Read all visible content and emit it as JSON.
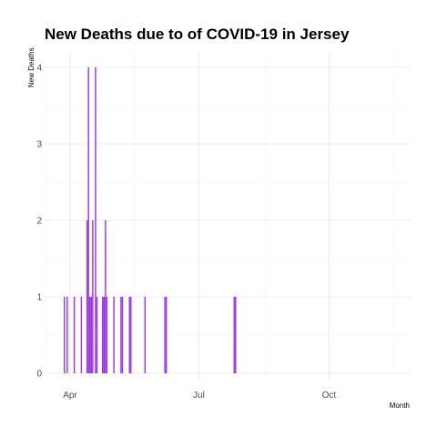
{
  "chart_data": {
    "type": "bar",
    "title": "New Deaths due to of COVID-19 in Jersey",
    "xlabel": "Month",
    "ylabel": "New Deaths",
    "x_type": "date",
    "xlim": [
      "2020-03-14",
      "2020-11-27"
    ],
    "ylim": [
      0,
      4.2
    ],
    "y_ticks": [
      0,
      1,
      2,
      3,
      4
    ],
    "x_ticks": [
      {
        "date": "2020-04-01",
        "label": "Apr"
      },
      {
        "date": "2020-07-01",
        "label": "Jul"
      },
      {
        "date": "2020-10-01",
        "label": "Oct"
      }
    ],
    "grid": true,
    "bar_color": "#9b30e0",
    "series": [
      {
        "points": [
          {
            "x": "2020-03-28",
            "y": 1
          },
          {
            "x": "2020-03-30",
            "y": 1
          },
          {
            "x": "2020-04-04",
            "y": 1
          },
          {
            "x": "2020-04-09",
            "y": 1
          },
          {
            "x": "2020-04-13",
            "y": 2
          },
          {
            "x": "2020-04-14",
            "y": 4
          },
          {
            "x": "2020-04-15",
            "y": 1
          },
          {
            "x": "2020-04-16",
            "y": 1
          },
          {
            "x": "2020-04-17",
            "y": 2
          },
          {
            "x": "2020-04-19",
            "y": 4
          },
          {
            "x": "2020-04-20",
            "y": 1
          },
          {
            "x": "2020-04-24",
            "y": 1
          },
          {
            "x": "2020-04-25",
            "y": 1
          },
          {
            "x": "2020-04-26",
            "y": 2
          },
          {
            "x": "2020-04-27",
            "y": 1
          },
          {
            "x": "2020-05-02",
            "y": 1
          },
          {
            "x": "2020-05-07",
            "y": 1
          },
          {
            "x": "2020-05-08",
            "y": 1
          },
          {
            "x": "2020-05-13",
            "y": 1
          },
          {
            "x": "2020-05-14",
            "y": 1
          },
          {
            "x": "2020-05-24",
            "y": 1
          },
          {
            "x": "2020-06-07",
            "y": 1
          },
          {
            "x": "2020-06-08",
            "y": 1
          },
          {
            "x": "2020-07-26",
            "y": 1
          },
          {
            "x": "2020-07-27",
            "y": 1
          }
        ]
      }
    ]
  }
}
